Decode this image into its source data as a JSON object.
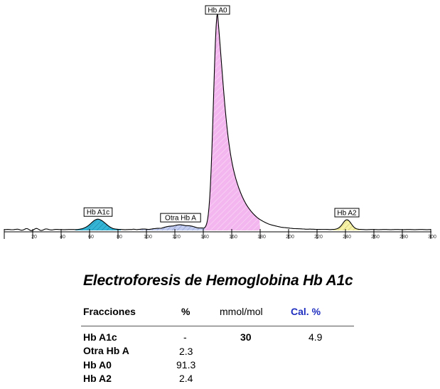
{
  "report": {
    "title": "Electroforesis de Hemoglobina Hb A1c",
    "headers": {
      "fraction": "Fracciones",
      "percent": "%",
      "mmol": "mmol/mol",
      "cal": "Cal. %"
    },
    "rows": [
      {
        "name": "Hb A1c",
        "percent": "-",
        "mmol": "30",
        "cal": "4.9"
      },
      {
        "name": "Otra Hb A",
        "percent": "2.3",
        "mmol": "",
        "cal": ""
      },
      {
        "name": "Hb A0",
        "percent": "91.3",
        "mmol": "",
        "cal": ""
      },
      {
        "name": "Hb A2",
        "percent": "2.4",
        "mmol": "",
        "cal": ""
      }
    ],
    "colors": {
      "cal_header": "#1f2fbf",
      "text": "#000000"
    }
  },
  "chart_data": {
    "type": "line",
    "title": "",
    "xlabel": "",
    "ylabel": "",
    "xlim": [
      0,
      300
    ],
    "ylim": [
      0,
      100
    ],
    "xticks": [
      0,
      20,
      40,
      60,
      80,
      100,
      120,
      140,
      160,
      180,
      200,
      220,
      240,
      260,
      280,
      300
    ],
    "tick_labels": [
      "",
      "20",
      "40",
      "60",
      "80",
      "100",
      "120",
      "140",
      "160",
      "180",
      "200",
      "220",
      "240",
      "260",
      "280",
      "300"
    ],
    "grid": false,
    "legend": "none",
    "peaks": [
      {
        "name": "Hb A1c",
        "label": "Hb A1c",
        "center": 66,
        "height": 4.8,
        "color": "#34b5d6"
      },
      {
        "name": "Otra Hb A",
        "label": "Otra Hb A",
        "center": 124,
        "height": 2.0,
        "color": "#a9b8e8"
      },
      {
        "name": "Hb A0",
        "label": "Hb A0",
        "center": 150,
        "height": 100,
        "color": "#f3b6ee"
      },
      {
        "name": "Hb A2",
        "label": "Hb A2",
        "center": 241,
        "height": 4.5,
        "color": "#f3ef9a"
      }
    ]
  }
}
